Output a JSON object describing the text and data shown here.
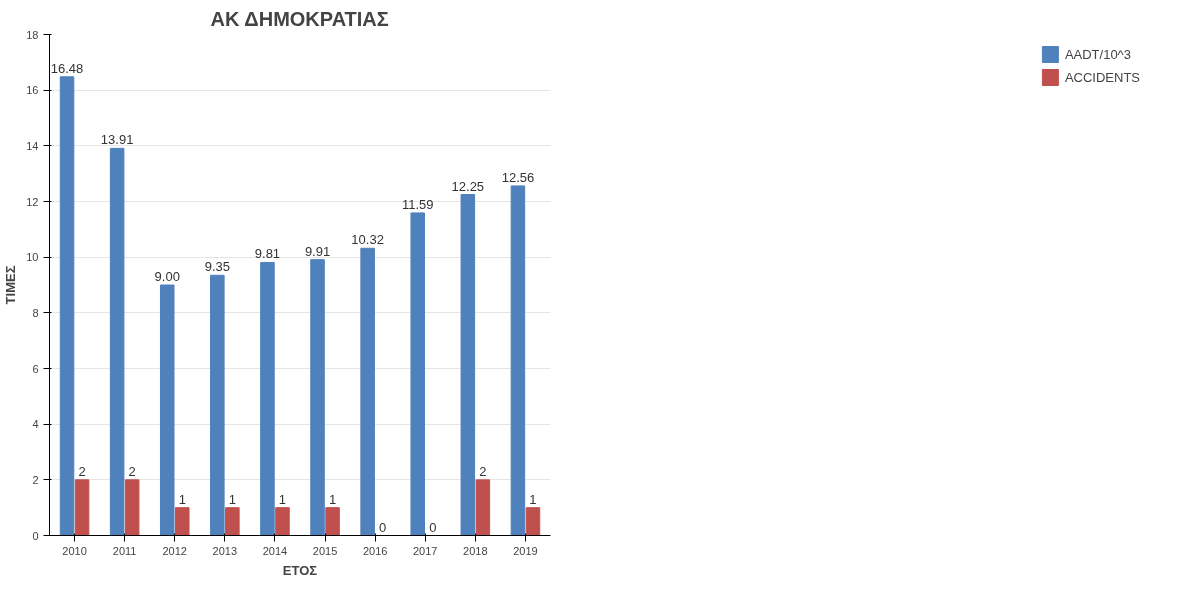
{
  "chart_data": {
    "type": "bar",
    "title": "ΑΚ ΔΗΜΟΚΡΑΤΙΑΣ",
    "xlabel": "ΕΤΟΣ",
    "ylabel": "ΤΙΜΕΣ",
    "categories": [
      "2010",
      "2011",
      "2012",
      "2013",
      "2014",
      "2015",
      "2016",
      "2017",
      "2018",
      "2019"
    ],
    "series": [
      {
        "name": "AADT/10^3",
        "color": "#4f81bd",
        "values": [
          16.48,
          13.91,
          9.0,
          9.35,
          9.81,
          9.91,
          10.32,
          11.59,
          12.25,
          12.56
        ],
        "value_labels": [
          "16.48",
          "13.91",
          "9.00",
          "9.35",
          "9.81",
          "9.91",
          "10.32",
          "11.59",
          "12.25",
          "12.56"
        ]
      },
      {
        "name": "ACCIDENTS",
        "color": "#c0504d",
        "values": [
          2,
          2,
          1,
          1,
          1,
          1,
          0,
          0,
          2,
          1
        ],
        "value_labels": [
          "2",
          "2",
          "1",
          "1",
          "1",
          "1",
          "0",
          "0",
          "2",
          "1"
        ]
      }
    ],
    "ylim": [
      0,
      18
    ],
    "yticks": [
      0,
      2,
      4,
      6,
      8,
      10,
      12,
      14,
      16,
      18
    ],
    "grid": "y",
    "legend": "right"
  }
}
